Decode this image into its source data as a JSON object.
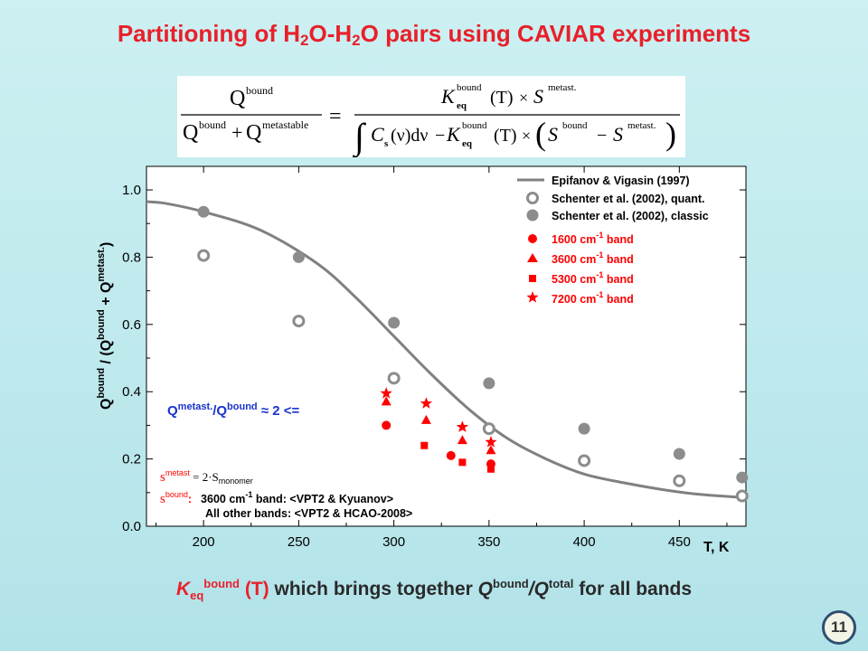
{
  "title": {
    "part1": "Partitioning of H",
    "sub1": "2",
    "part2": "O-H",
    "sub2": "2",
    "part3": "O pairs using CAVIAR experiments"
  },
  "formula": {
    "lhs_num": "Q",
    "lhs_num_sup": "bound",
    "lhs_den_q1": "Q",
    "lhs_den_sup1": "bound",
    "lhs_den_plus": "+",
    "lhs_den_q2": "Q",
    "lhs_den_sup2": "metastable",
    "equals": "=",
    "rhs_num_k": "K",
    "rhs_num_k_sup": "bound",
    "rhs_num_k_sub": "eq",
    "rhs_num_t": "(T)",
    "rhs_num_times": "×",
    "rhs_num_s": "S",
    "rhs_num_s_sup": "metast.",
    "rhs_den_int": "∫",
    "rhs_den_c": "C",
    "rhs_den_c_sub": "s",
    "rhs_den_nu": "(ν)dν",
    "rhs_den_minus": "−",
    "rhs_den_k": "K",
    "rhs_den_k_sup": "bound",
    "rhs_den_k_sub": "eq",
    "rhs_den_t": "(T)",
    "rhs_den_times": "×",
    "rhs_den_s1": "S",
    "rhs_den_s1_sup": "bound",
    "rhs_den_minus2": "−",
    "rhs_den_s2": "S",
    "rhs_den_s2_sup": "metast."
  },
  "chart_data": {
    "type": "scatter",
    "xlabel": "T, K",
    "ylabel_parts": [
      "Q",
      "bound",
      " / (Q",
      "bound",
      " + Q",
      "metast.",
      ")"
    ],
    "xlim": [
      170,
      485
    ],
    "ylim": [
      0.0,
      1.07
    ],
    "xticks": [
      "200",
      "250",
      "300",
      "350",
      "400",
      "450"
    ],
    "xtick_values": [
      200,
      250,
      300,
      350,
      400,
      450
    ],
    "yticks": [
      "0.0",
      "0.2",
      "0.4",
      "0.6",
      "0.8",
      "1.0"
    ],
    "ytick_values": [
      0.0,
      0.2,
      0.4,
      0.6,
      0.8,
      1.0
    ],
    "grid": false,
    "legend_position": "top-right",
    "colors": {
      "curve": "#808080",
      "classic": "#8c8c8c",
      "quant_edge": "#8c8c8c",
      "bands": "#ff0000",
      "annotation_blue": "#1a33cc",
      "frame": "#000000"
    },
    "series": [
      {
        "name": "Epifanov & Vigasin (1997)",
        "kind": "line",
        "x": [
          170,
          180,
          200,
          230,
          260,
          280,
          300,
          320,
          340,
          360,
          380,
          400,
          420,
          440,
          460,
          485
        ],
        "y": [
          0.965,
          0.96,
          0.935,
          0.88,
          0.78,
          0.68,
          0.565,
          0.45,
          0.345,
          0.26,
          0.2,
          0.155,
          0.13,
          0.11,
          0.095,
          0.085
        ]
      },
      {
        "name": "Schenter et al. (2002), quant.",
        "kind": "scatter",
        "marker": "open-circle",
        "x": [
          200,
          250,
          300,
          350,
          400,
          450,
          500
        ],
        "y": [
          0.805,
          0.61,
          0.44,
          0.29,
          0.195,
          0.135,
          0.09
        ]
      },
      {
        "name": "Schenter et al. (2002), classic",
        "kind": "scatter",
        "marker": "filled-circle",
        "x": [
          200,
          250,
          300,
          350,
          400,
          450,
          500
        ],
        "y": [
          0.935,
          0.8,
          0.605,
          0.425,
          0.29,
          0.215,
          0.145
        ]
      },
      {
        "name_html": "1600",
        "name_unit": "cm",
        "name_sup": "-1",
        "name_tail": "band",
        "kind": "scatter",
        "marker": "circle-red",
        "x": [
          296,
          330,
          351
        ],
        "y": [
          0.3,
          0.21,
          0.185
        ]
      },
      {
        "name_html": "3600",
        "name_unit": "cm",
        "name_sup": "-1",
        "name_tail": "band",
        "kind": "scatter",
        "marker": "triangle-red",
        "x": [
          296,
          317,
          336,
          351
        ],
        "y": [
          0.37,
          0.315,
          0.255,
          0.225
        ]
      },
      {
        "name_html": "5300",
        "name_unit": "cm",
        "name_sup": "-1",
        "name_tail": "band",
        "kind": "scatter",
        "marker": "square-red",
        "x": [
          316,
          336,
          351
        ],
        "y": [
          0.24,
          0.19,
          0.17
        ]
      },
      {
        "name_html": "7200",
        "name_unit": "cm",
        "name_sup": "-1",
        "name_tail": "band",
        "kind": "scatter",
        "marker": "star-red",
        "x": [
          296,
          317,
          336,
          351
        ],
        "y": [
          0.395,
          0.365,
          0.295,
          0.25
        ]
      }
    ],
    "annotations": {
      "ratio": {
        "q1": "Q",
        "sup1": "metast.",
        "slash": "/Q",
        "sup2": "bound",
        "tail": " ≈ 2  <="
      },
      "smetast": {
        "s": "s",
        "sup": "metast",
        "tail": " = 2·S",
        "sub": "monomer"
      },
      "sbound": {
        "s": "s",
        "sup": "bound",
        "colon": ":",
        "line1": "3600 cm",
        "line1_sup": "-1",
        "line1_tail": " band:  <VPT2 & Kyuanov>"
      },
      "otherbands": "All other bands:  <VPT2 & HCAO-2008>"
    }
  },
  "bottom": {
    "k": "K",
    "k_sub": "eq",
    "k_sup": "bound",
    "t": " (T)",
    "mid": "  which brings together ",
    "q": "Q",
    "q_sup": "bound",
    "slash": "/Q",
    "q2_sup": "total",
    "tail": "  for all bands"
  },
  "page_number": "11"
}
